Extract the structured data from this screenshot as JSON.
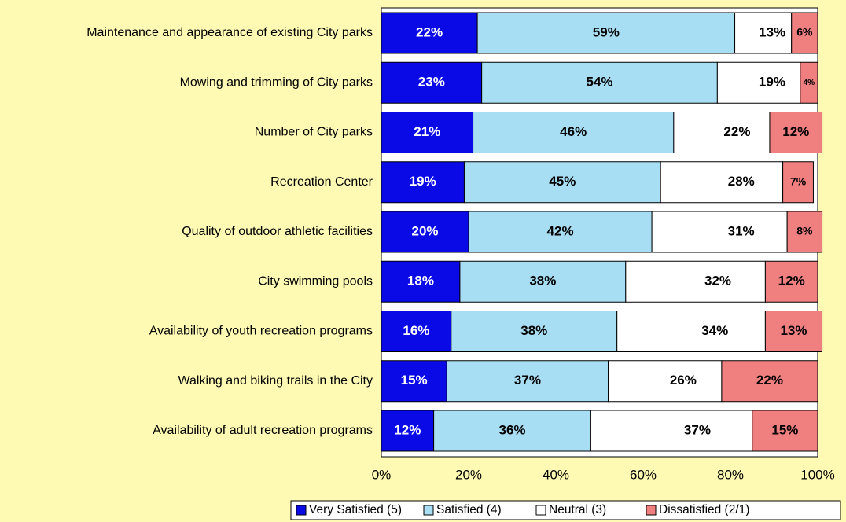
{
  "chart_data": {
    "type": "bar",
    "orientation": "horizontal",
    "stacked": true,
    "percent_stacked": true,
    "categories": [
      "Maintenance and appearance of existing City parks",
      "Mowing and trimming of City parks",
      "Number of City parks",
      "Recreation Center",
      "Quality of outdoor athletic facilities",
      "City swimming pools",
      "Availability of youth recreation programs",
      "Walking and biking trails in the City",
      "Availability of adult recreation programs"
    ],
    "series": [
      {
        "name": "Very Satisfied (5)",
        "color": "#0a0ae6",
        "label_color": "#ffffff",
        "values": [
          22,
          23,
          21,
          19,
          20,
          18,
          16,
          15,
          12
        ]
      },
      {
        "name": "Satisfied (4)",
        "color": "#a8def3",
        "label_color": "#000000",
        "values": [
          59,
          54,
          46,
          45,
          42,
          38,
          38,
          37,
          36
        ]
      },
      {
        "name": "Neutral (3)",
        "color": "#ffffff",
        "label_color": "#000000",
        "values": [
          13,
          19,
          22,
          28,
          31,
          32,
          34,
          26,
          37
        ]
      },
      {
        "name": "Dissatisfied (2/1)",
        "color": "#f08080",
        "label_color": "#000000",
        "values": [
          6,
          4,
          12,
          7,
          8,
          12,
          13,
          22,
          15
        ]
      }
    ],
    "xlim": [
      0,
      100
    ],
    "x_ticks": [
      "0%",
      "20%",
      "40%",
      "60%",
      "80%",
      "100%"
    ],
    "legend_position": "bottom-right",
    "background_color": "#fefab4",
    "grid": false
  }
}
